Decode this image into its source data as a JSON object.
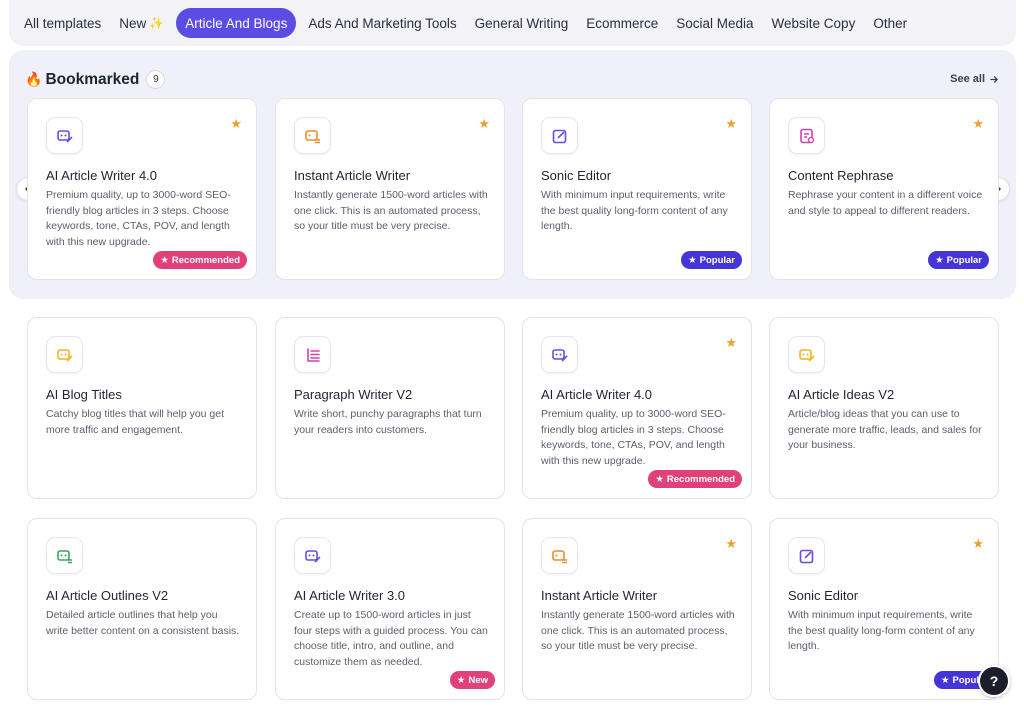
{
  "tabs": [
    {
      "label": "All templates",
      "active": false
    },
    {
      "label": "New",
      "suffix": "✨",
      "active": false
    },
    {
      "label": "Article And Blogs",
      "active": true
    },
    {
      "label": "Ads And Marketing Tools",
      "active": false
    },
    {
      "label": "General Writing",
      "active": false
    },
    {
      "label": "Ecommerce",
      "active": false
    },
    {
      "label": "Social Media",
      "active": false
    },
    {
      "label": "Website Copy",
      "active": false
    },
    {
      "label": "Other",
      "active": false
    }
  ],
  "bookmarked": {
    "icon": "🔥",
    "title": "Bookmarked",
    "count": "9",
    "see_all": "See all",
    "cards": [
      {
        "title": "AI Article Writer 4.0",
        "desc": "Premium quality, up to 3000-word SEO-friendly blog articles in 3 steps. Choose keywords, tone, CTAs, POV, and length with this new upgrade.",
        "badge": "Recommended",
        "icon_color": "#6a4ce0"
      },
      {
        "title": "Instant Article Writer",
        "desc": "Instantly generate 1500-word articles with one click. This is an automated process, so your title must be very precise.",
        "badge": "",
        "icon_color": "#f08c2a"
      },
      {
        "title": "Sonic Editor",
        "desc": "With minimum input requirements, write the best quality long-form content of any length.",
        "badge": "Popular",
        "icon_color": "#6a4ce0"
      },
      {
        "title": "Content Rephrase",
        "desc": "Rephrase your content in a different voice and style to appeal to different readers.",
        "badge": "Popular",
        "icon_color": "#d040b0"
      }
    ]
  },
  "grid": {
    "cards": [
      {
        "title": "AI Blog Titles",
        "desc": "Catchy blog titles that will help you get more traffic and engagement.",
        "starred": false,
        "badge": "",
        "icon_color": "#f0b429"
      },
      {
        "title": "Paragraph Writer V2",
        "desc": "Write short, punchy paragraphs that turn your readers into customers.",
        "starred": false,
        "badge": "",
        "icon_color": "#d040b0"
      },
      {
        "title": "AI Article Writer 4.0",
        "desc": "Premium quality, up to 3000-word SEO-friendly blog articles in 3 steps. Choose keywords, tone, CTAs, POV, and length with this new upgrade.",
        "starred": true,
        "badge": "Recommended",
        "icon_color": "#6a4ce0"
      },
      {
        "title": "AI Article Ideas V2",
        "desc": "Article/blog ideas that you can use to generate more traffic, leads, and sales for your business.",
        "starred": false,
        "badge": "",
        "icon_color": "#f0b429"
      },
      {
        "title": "AI Article Outlines V2",
        "desc": "Detailed article outlines that help you write better content on a consistent basis.",
        "starred": false,
        "badge": "",
        "icon_color": "#3aa55a"
      },
      {
        "title": "AI Article Writer 3.0",
        "desc": "Create up to 1500-word articles in just four steps with a guided process. You can choose title, intro, and outline, and customize them as needed.",
        "starred": false,
        "badge": "New",
        "icon_color": "#6a4ce0"
      },
      {
        "title": "Instant Article Writer",
        "desc": "Instantly generate 1500-word articles with one click. This is an automated process, so your title must be very precise.",
        "starred": true,
        "badge": "",
        "icon_color": "#f08c2a"
      },
      {
        "title": "Sonic Editor",
        "desc": "With minimum input requirements, write the best quality long-form content of any length.",
        "starred": true,
        "badge": "Popula",
        "icon_color": "#6a4ce0"
      }
    ]
  },
  "help_label": "?"
}
